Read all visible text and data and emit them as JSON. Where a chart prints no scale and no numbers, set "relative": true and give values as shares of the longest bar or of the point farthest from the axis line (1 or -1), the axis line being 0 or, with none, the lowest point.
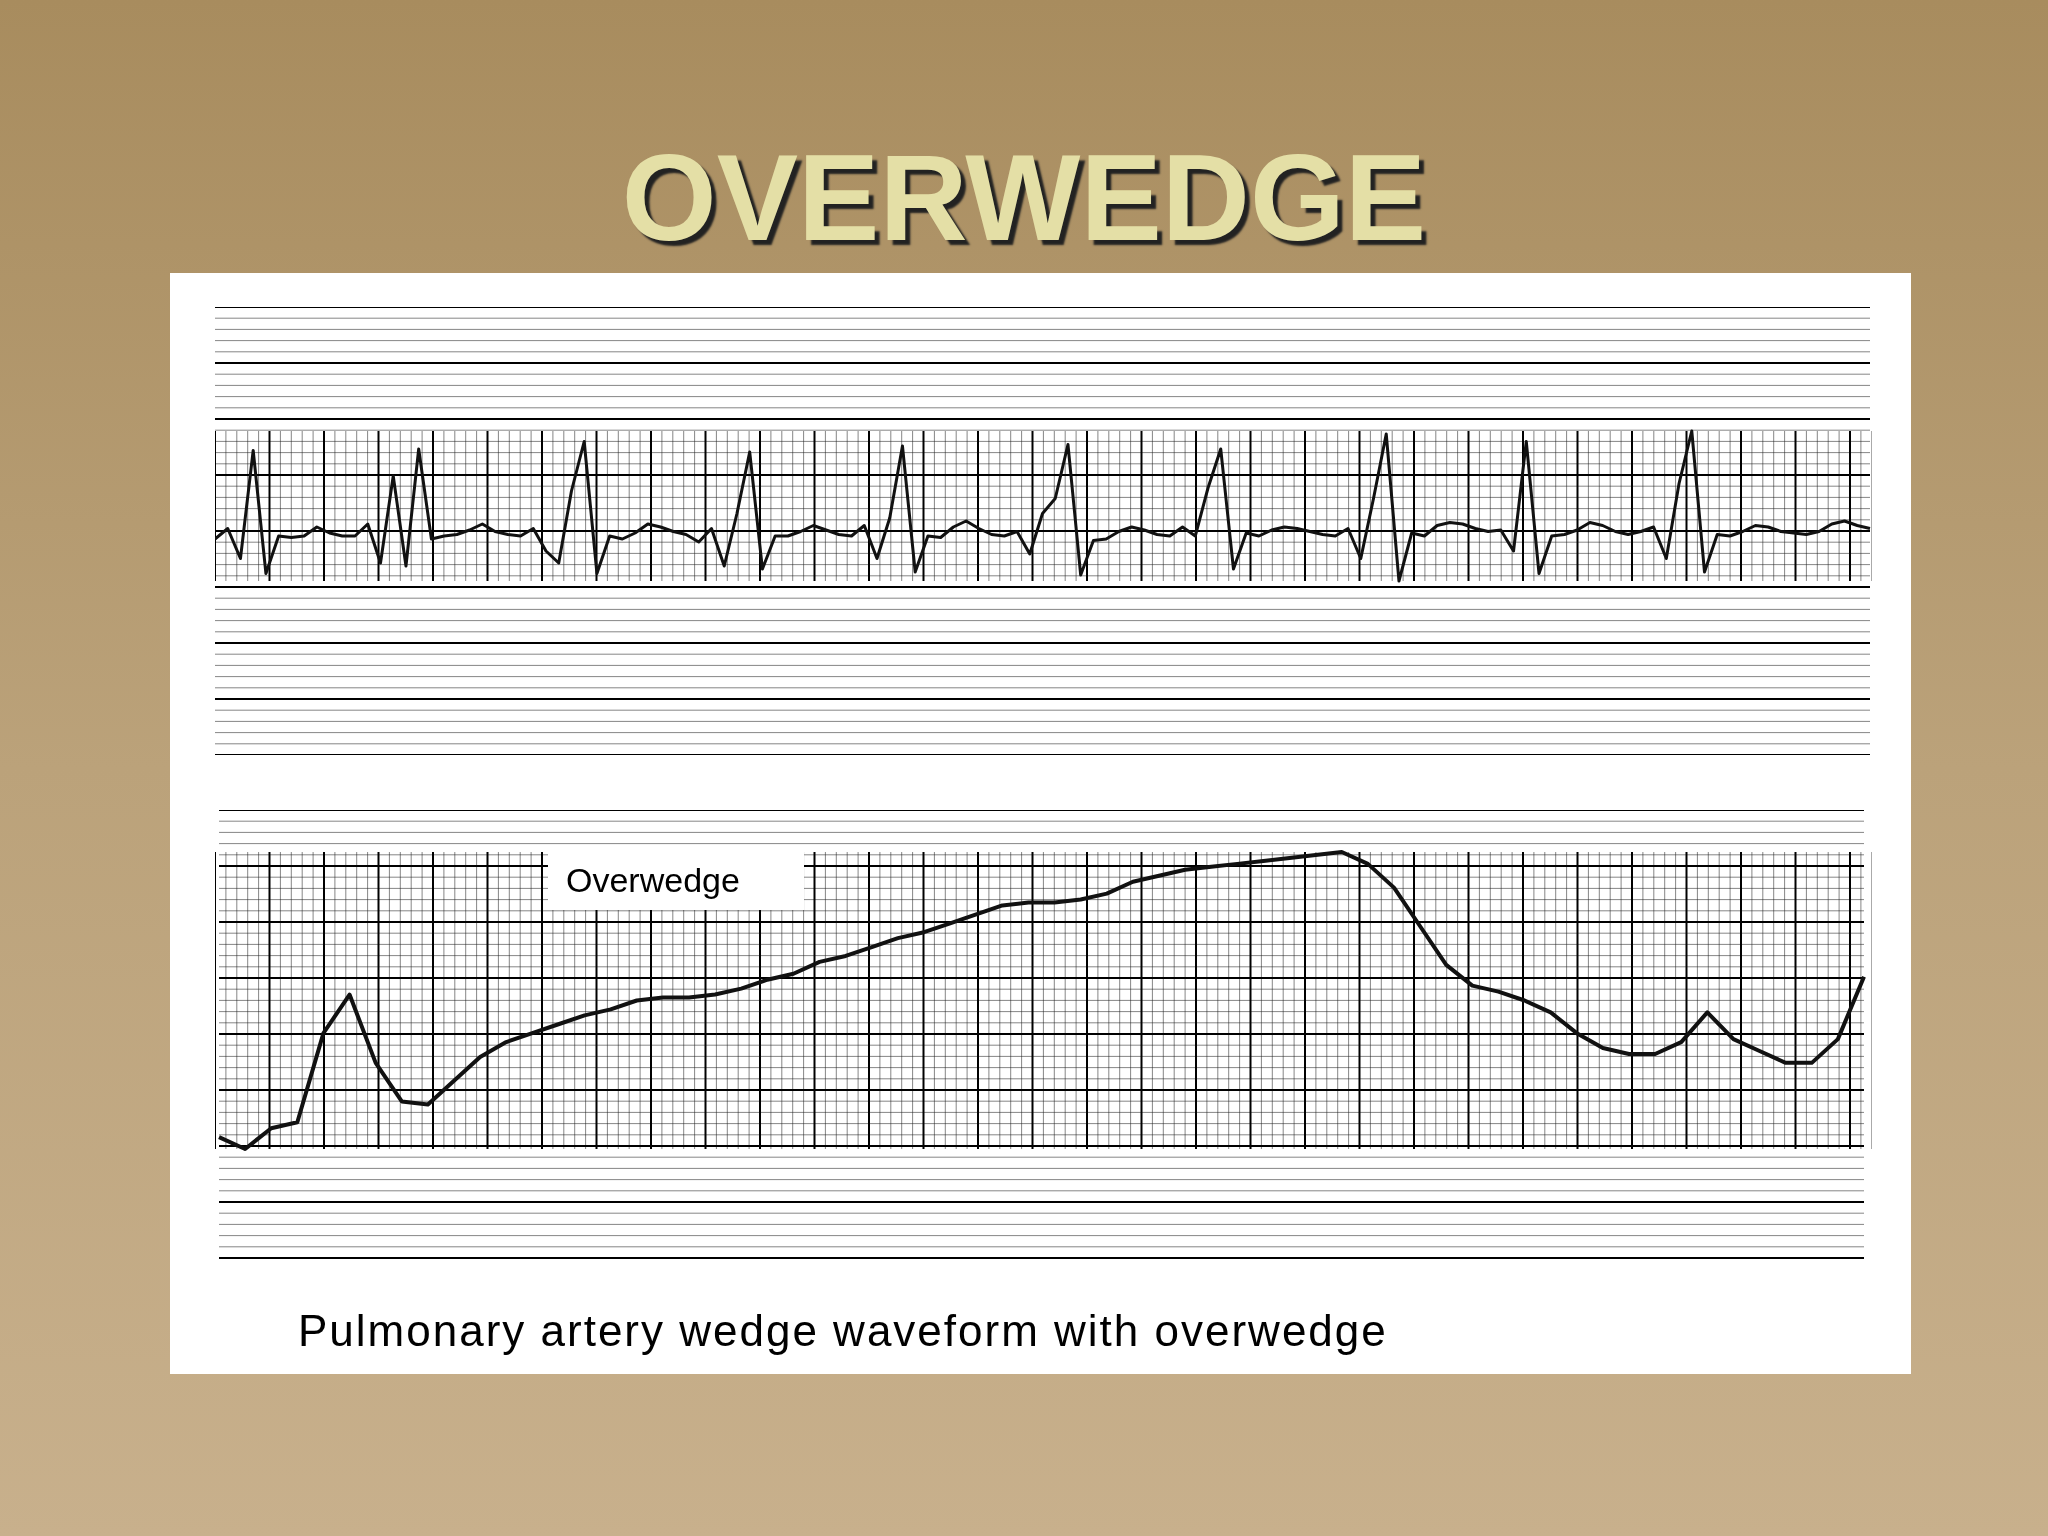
{
  "chart_data": [
    {
      "type": "line",
      "title": "OVERWEDGE",
      "relative": true,
      "grid": true,
      "marker": "none",
      "categories": [
        null,
        null,
        null,
        null,
        null,
        null,
        null,
        null,
        null,
        null,
        null,
        null,
        null,
        null,
        null,
        null,
        null,
        null,
        null,
        null,
        null,
        null,
        null,
        null,
        null,
        null,
        null,
        null,
        null,
        null,
        null,
        null,
        null,
        null,
        null,
        null,
        null,
        null,
        null,
        null,
        null,
        null,
        null,
        null,
        null,
        null,
        null,
        null,
        null,
        null,
        null,
        null,
        null,
        null,
        null,
        null,
        null,
        null,
        null,
        null,
        null,
        null,
        null,
        null,
        null,
        null,
        null,
        null,
        null,
        null,
        null,
        null,
        null,
        null,
        null,
        null,
        null,
        null,
        null,
        null,
        null,
        null,
        null,
        null,
        null,
        null,
        null,
        null,
        null,
        null,
        null,
        null,
        null,
        null,
        null,
        null,
        null,
        null,
        null,
        null,
        null,
        null,
        null,
        null,
        null,
        null,
        null,
        null,
        null,
        null,
        null,
        null,
        null,
        null,
        null,
        null,
        null,
        null,
        null,
        null,
        null,
        null,
        null,
        null,
        null,
        null,
        null,
        null,
        null,
        null,
        null
      ],
      "series": [
        {
          "color": "#111111",
          "values": [
            0.28,
            0.35,
            0.15,
            0.87,
            0.05,
            0.3,
            0.29,
            0.3,
            0.36,
            0.32,
            0.3,
            0.3,
            0.38,
            0.12,
            0.7,
            0.1,
            0.88,
            0.28,
            0.3,
            0.31,
            0.34,
            0.38,
            0.33,
            0.31,
            0.3,
            0.35,
            0.2,
            0.12,
            0.6,
            0.93,
            0.05,
            0.3,
            0.28,
            0.32,
            0.38,
            0.36,
            0.33,
            0.31,
            0.26,
            0.35,
            0.1,
            0.45,
            0.86,
            0.08,
            0.3,
            0.3,
            0.33,
            0.37,
            0.34,
            0.31,
            0.3,
            0.37,
            0.15,
            0.42,
            0.9,
            0.06,
            0.3,
            0.29,
            0.36,
            0.4,
            0.35,
            0.31,
            0.3,
            0.33,
            0.18,
            0.45,
            0.55,
            0.91,
            0.04,
            0.27,
            0.28,
            0.33,
            0.36,
            0.34,
            0.31,
            0.3,
            0.36,
            0.3,
            0.62,
            0.88,
            0.08,
            0.32,
            0.3,
            0.34,
            0.36,
            0.35,
            0.33,
            0.31,
            0.3,
            0.35,
            0.15,
            0.55,
            0.98,
            0.0,
            0.32,
            0.3,
            0.37,
            0.39,
            0.38,
            0.35,
            0.33,
            0.34,
            0.2,
            0.93,
            0.05,
            0.3,
            0.31,
            0.34,
            0.39,
            0.37,
            0.33,
            0.31,
            0.33,
            0.36,
            0.15,
            0.65,
            1.0,
            0.06,
            0.31,
            0.3,
            0.33,
            0.37,
            0.36,
            0.33,
            0.32,
            0.31,
            0.33,
            0.38,
            0.4,
            0.37,
            0.35
          ]
        }
      ]
    },
    {
      "type": "line",
      "relative": true,
      "grid": true,
      "marker": "none",
      "annotations": [
        "Overwedge",
        "Pulmonary artery wedge waveform with overwedge"
      ],
      "categories": [
        null,
        null,
        null,
        null,
        null,
        null,
        null,
        null,
        null,
        null,
        null,
        null,
        null,
        null,
        null,
        null,
        null,
        null,
        null,
        null,
        null,
        null,
        null,
        null,
        null,
        null,
        null,
        null,
        null,
        null,
        null,
        null,
        null,
        null,
        null,
        null,
        null,
        null,
        null,
        null,
        null,
        null,
        null,
        null,
        null,
        null,
        null,
        null,
        null,
        null,
        null,
        null,
        null,
        null,
        null,
        null,
        null,
        null,
        null,
        null,
        null,
        null,
        null,
        null
      ],
      "series": [
        {
          "color": "#111111",
          "values": [
            0.04,
            0.0,
            0.07,
            0.09,
            0.39,
            0.52,
            0.29,
            0.16,
            0.15,
            0.23,
            0.31,
            0.36,
            0.39,
            0.42,
            0.45,
            0.47,
            0.5,
            0.51,
            0.51,
            0.52,
            0.54,
            0.57,
            0.59,
            0.63,
            0.65,
            0.68,
            0.71,
            0.73,
            0.76,
            0.79,
            0.82,
            0.83,
            0.83,
            0.84,
            0.86,
            0.9,
            0.92,
            0.94,
            0.95,
            0.96,
            0.97,
            0.98,
            0.99,
            1.0,
            0.96,
            0.88,
            0.75,
            0.62,
            0.55,
            0.53,
            0.5,
            0.46,
            0.39,
            0.34,
            0.32,
            0.32,
            0.36,
            0.46,
            0.37,
            0.33,
            0.29,
            0.29,
            0.37,
            0.58
          ]
        }
      ]
    }
  ]
}
